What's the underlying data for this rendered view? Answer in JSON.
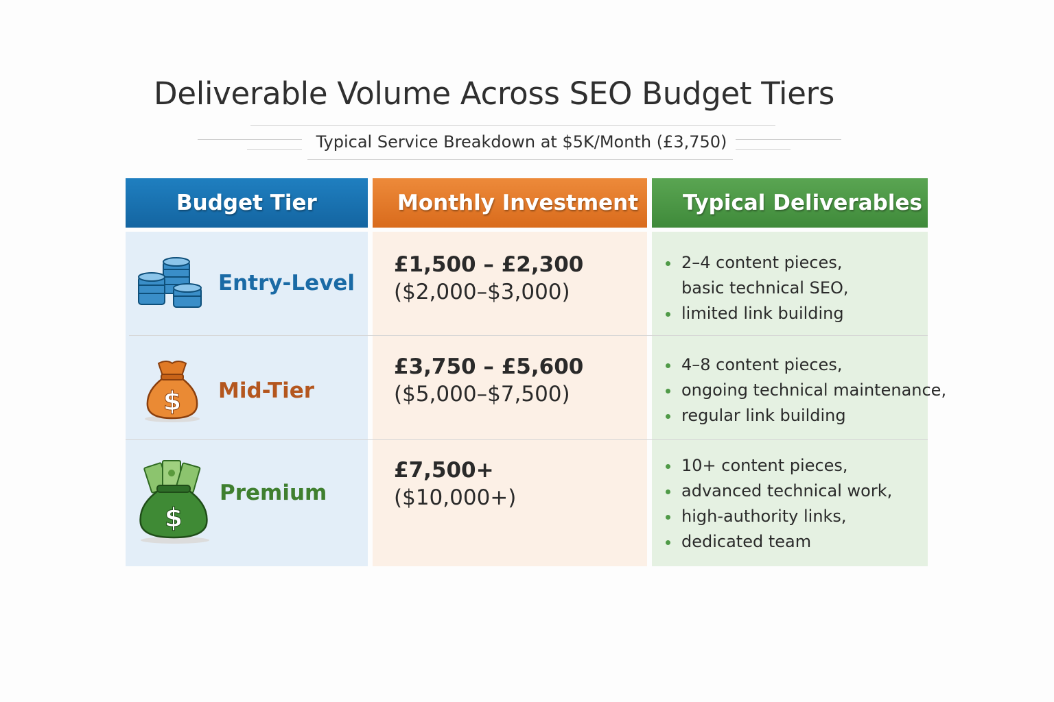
{
  "title": "Deliverable Volume Across SEO Budget Tiers",
  "subtitle": "Typical Service Breakdown at $5K/Month (£3,750)",
  "headers": {
    "tier": "Budget Tier",
    "investment": "Monthly Investment",
    "deliverables": "Typical Deliverables"
  },
  "colors": {
    "tier_header": "#1a72b0",
    "investment_header": "#e27a2a",
    "deliverables_header": "#4c9846",
    "entry_text": "#1a6aa5",
    "mid_text": "#b4561e",
    "premium_text": "#3f7f2f"
  },
  "rows": [
    {
      "tier": "Entry-Level",
      "icon": "coin-stack-icon",
      "gbp": "£1,500 – £2,300",
      "usd": "($2,000–$3,000)",
      "deliverables": [
        "2–4 content pieces,",
        "basic technical SEO,",
        "limited link building"
      ]
    },
    {
      "tier": "Mid-Tier",
      "icon": "money-bag-icon",
      "gbp": "£3,750 – £5,600",
      "usd": "($5,000–$7,500)",
      "deliverables": [
        "4–8 content pieces,",
        "ongoing technical maintenance,",
        "regular link building"
      ]
    },
    {
      "tier": "Premium",
      "icon": "cash-bag-icon",
      "gbp": "£7,500+",
      "usd": "($10,000+)",
      "deliverables": [
        "10+ content pieces,",
        "advanced technical work,",
        "high-authority links,",
        "dedicated team"
      ]
    }
  ]
}
